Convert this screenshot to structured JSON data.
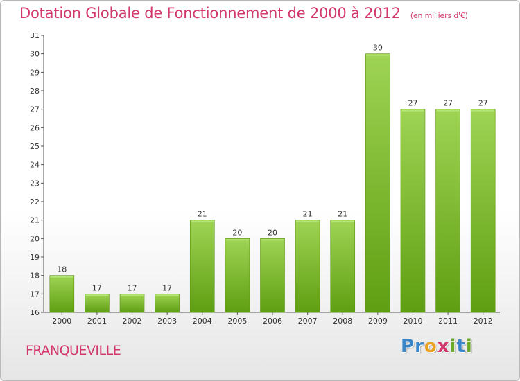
{
  "header": {
    "title": "Dotation Globale de Fonctionnement de 2000 à 2012",
    "subtitle": "(en milliers d'€)"
  },
  "footer": {
    "commune": "FRANQUEVILLE",
    "logo_letters": [
      {
        "char": "P",
        "color": "#3a86c8"
      },
      {
        "char": "r",
        "color": "#3a86c8"
      },
      {
        "char": "o",
        "color": "#e8a21e"
      },
      {
        "char": "x",
        "color": "#d2386e"
      },
      {
        "char": "i",
        "color": "#6aaa2a"
      },
      {
        "char": "t",
        "color": "#3a86c8"
      },
      {
        "char": "i",
        "color": "#6aaa2a"
      }
    ]
  },
  "chart_data": {
    "type": "bar",
    "categories": [
      "2000",
      "2001",
      "2002",
      "2003",
      "2004",
      "2005",
      "2006",
      "2007",
      "2008",
      "2009",
      "2010",
      "2011",
      "2012"
    ],
    "values": [
      18,
      17,
      17,
      17,
      21,
      20,
      20,
      21,
      21,
      30,
      27,
      27,
      27
    ],
    "ylim": [
      16,
      31
    ],
    "yticks": [
      16,
      17,
      18,
      19,
      20,
      21,
      22,
      23,
      24,
      25,
      26,
      27,
      28,
      29,
      30,
      31
    ],
    "grid": false,
    "colors": {
      "bar_top": "#9fd454",
      "bar_bottom": "#5f9e12",
      "bar_edge": "#5a9410",
      "axis": "#555555"
    }
  }
}
